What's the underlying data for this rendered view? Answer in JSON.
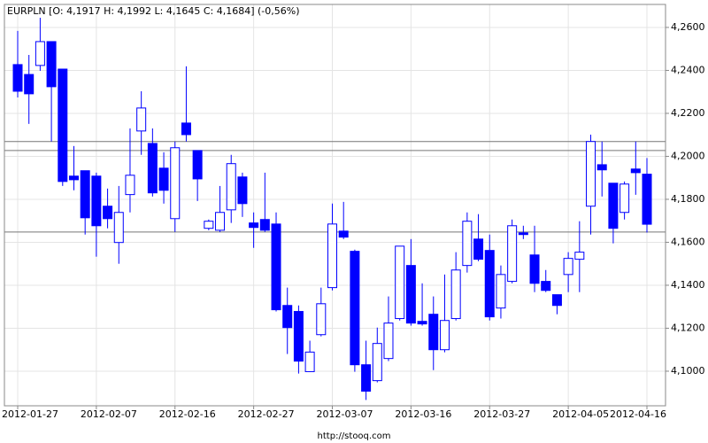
{
  "chart_data": {
    "type": "candlestick",
    "title": "EURPLN [O: 4,1917  H: 4,1992  L: 4,1645  C: 4,1684] (-0,56%)",
    "footer": "http://stooq.com",
    "categories": [
      "2012-01-27",
      null,
      null,
      null,
      null,
      null,
      null,
      "2012-02-07",
      null,
      null,
      null,
      null,
      null,
      null,
      "2012-02-16",
      null,
      null,
      null,
      null,
      null,
      null,
      "2012-02-27",
      null,
      null,
      null,
      null,
      null,
      null,
      "2012-03-07",
      null,
      null,
      null,
      null,
      null,
      null,
      "2012-03-16",
      null,
      null,
      null,
      null,
      null,
      null,
      "2012-03-27",
      null,
      null,
      null,
      null,
      null,
      null,
      "2012-04-05",
      null,
      null,
      null,
      null,
      null,
      null,
      "2012-04-16"
    ],
    "open": [
      4.2427,
      4.2381,
      4.2423,
      4.2534,
      4.2406,
      4.1908,
      4.1933,
      4.1908,
      4.1768,
      4.1599,
      4.1822,
      4.2118,
      4.206,
      4.1945,
      4.171,
      4.2155,
      4.2027,
      4.1665,
      4.1656,
      4.1751,
      4.1904,
      4.169,
      4.1706,
      4.1685,
      4.1306,
      4.1278,
      4.0998,
      4.117,
      4.1389,
      4.1652,
      4.1558,
      4.103,
      4.0956,
      4.1059,
      4.1245,
      4.1492,
      4.1232,
      4.1265,
      4.11,
      4.1245,
      4.1492,
      4.1615,
      4.1562,
      4.1294,
      4.1418,
      4.1644,
      4.1541,
      4.1418,
      4.1356,
      4.145,
      4.1521,
      4.1768,
      4.1961,
      4.1875,
      4.1739,
      4.1941,
      4.1917
    ],
    "high": [
      4.2584,
      4.2472,
      4.2645,
      4.2534,
      4.2406,
      4.2048,
      4.1933,
      4.1924,
      4.185,
      4.1862,
      4.213,
      4.2303,
      4.213,
      4.2019,
      4.2069,
      4.2419,
      4.2027,
      4.1706,
      4.1862,
      4.2007,
      4.1924,
      4.1739,
      4.1924,
      4.1739,
      4.1389,
      4.1306,
      4.1142,
      4.1389,
      4.178,
      4.1788,
      4.1566,
      4.1142,
      4.1203,
      4.1348,
      4.1582,
      4.1615,
      4.1409,
      4.1348,
      4.145,
      4.1554,
      4.1739,
      4.1731,
      4.1636,
      4.1492,
      4.1706,
      4.1677,
      4.1677,
      4.1471,
      4.1356,
      4.1554,
      4.1698,
      4.2101,
      4.2069,
      4.1875,
      4.1883,
      4.2069,
      4.1992
    ],
    "low": [
      4.2274,
      4.2151,
      4.2398,
      4.2069,
      4.1862,
      4.1842,
      4.1636,
      4.1533,
      4.1665,
      4.15,
      4.1739,
      4.2007,
      4.1813,
      4.178,
      4.1648,
      4.2069,
      4.1792,
      4.1656,
      4.1648,
      4.169,
      4.1718,
      4.1574,
      4.1648,
      4.1278,
      4.108,
      4.0989,
      4.0997,
      4.1162,
      4.1376,
      4.1615,
      4.0997,
      4.0866,
      4.0948,
      4.1047,
      4.1236,
      4.1212,
      4.1212,
      4.1005,
      4.1088,
      4.1236,
      4.1459,
      4.1512,
      4.1236,
      4.1245,
      4.1409,
      4.1615,
      4.1368,
      4.1368,
      4.1265,
      4.1368,
      4.1368,
      4.1636,
      4.1813,
      4.1595,
      4.1706,
      4.1821,
      4.1645
    ],
    "close": [
      4.2303,
      4.2291,
      4.2534,
      4.2324,
      4.1883,
      4.1891,
      4.1714,
      4.1677,
      4.171,
      4.1739,
      4.1912,
      4.2225,
      4.183,
      4.1842,
      4.204,
      4.2101,
      4.1895,
      4.1698,
      4.1739,
      4.1966,
      4.178,
      4.1669,
      4.1656,
      4.1286,
      4.1203,
      4.1047,
      4.1089,
      4.1314,
      4.1685,
      4.1624,
      4.103,
      4.0907,
      4.1129,
      4.1224,
      4.1582,
      4.1224,
      4.122,
      4.11,
      4.1236,
      4.1471,
      4.1698,
      4.1521,
      4.1253,
      4.145,
      4.1677,
      4.1636,
      4.1409,
      4.1376,
      4.1306,
      4.1525,
      4.1554,
      4.2069,
      4.1937,
      4.1665,
      4.1871,
      4.1924,
      4.1684
    ],
    "up_color": "#ffffff",
    "down_color": "#0000ff",
    "edge_color": "#0000ff",
    "hlines": [
      4.2069,
      4.2027,
      4.1648
    ],
    "ylim": [
      4.0839,
      4.2707
    ],
    "yticks": [
      {
        "value": 4.1,
        "label": "4,1000"
      },
      {
        "value": 4.12,
        "label": "4,1200"
      },
      {
        "value": 4.14,
        "label": "4,1400"
      },
      {
        "value": 4.16,
        "label": "4,1600"
      },
      {
        "value": 4.18,
        "label": "4,1800"
      },
      {
        "value": 4.2,
        "label": "4,2000"
      },
      {
        "value": 4.22,
        "label": "4,2200"
      },
      {
        "value": 4.24,
        "label": "4,2400"
      },
      {
        "value": 4.26,
        "label": "4,2600"
      }
    ],
    "grid": true
  }
}
